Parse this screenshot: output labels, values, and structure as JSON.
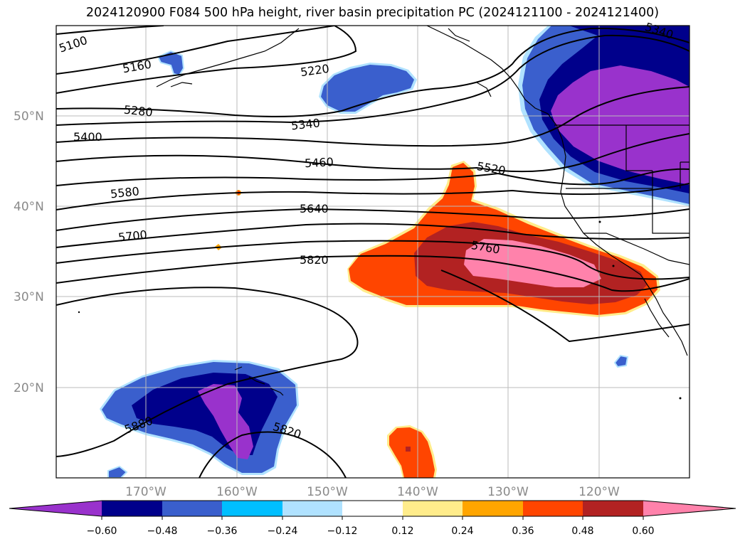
{
  "title": "2024120900 F084 500 hPa height, river basin precipitation PC (2024121100 - 2024121400)",
  "lat_labels": [
    "50°N",
    "40°N",
    "30°N",
    "20°N"
  ],
  "lon_labels": [
    "170°W",
    "160°W",
    "150°W",
    "140°W",
    "130°W",
    "120°W"
  ],
  "contour_labels": [
    "5100",
    "5160",
    "5220",
    "5280",
    "5340",
    "5340",
    "5400",
    "5460",
    "5520",
    "5580",
    "5640",
    "5700",
    "5760",
    "5820",
    "5880",
    "5820"
  ],
  "colorbar": {
    "tick_labels": [
      "−0.60",
      "−0.48",
      "−0.36",
      "−0.24",
      "−0.12",
      "0.12",
      "0.24",
      "0.36",
      "0.48",
      "0.60"
    ],
    "colors": [
      "#9932cc",
      "#00008b",
      "#3a5fcd",
      "#00bfff",
      "#b0e2ff",
      "#ffffff",
      "#ffec8b",
      "#ffa500",
      "#ff4500",
      "#b22222",
      "#ff82ab"
    ]
  },
  "colors": {
    "contour": "#000000",
    "grid": "#bbbbbb",
    "axis_label": "#8a8a8a"
  }
}
